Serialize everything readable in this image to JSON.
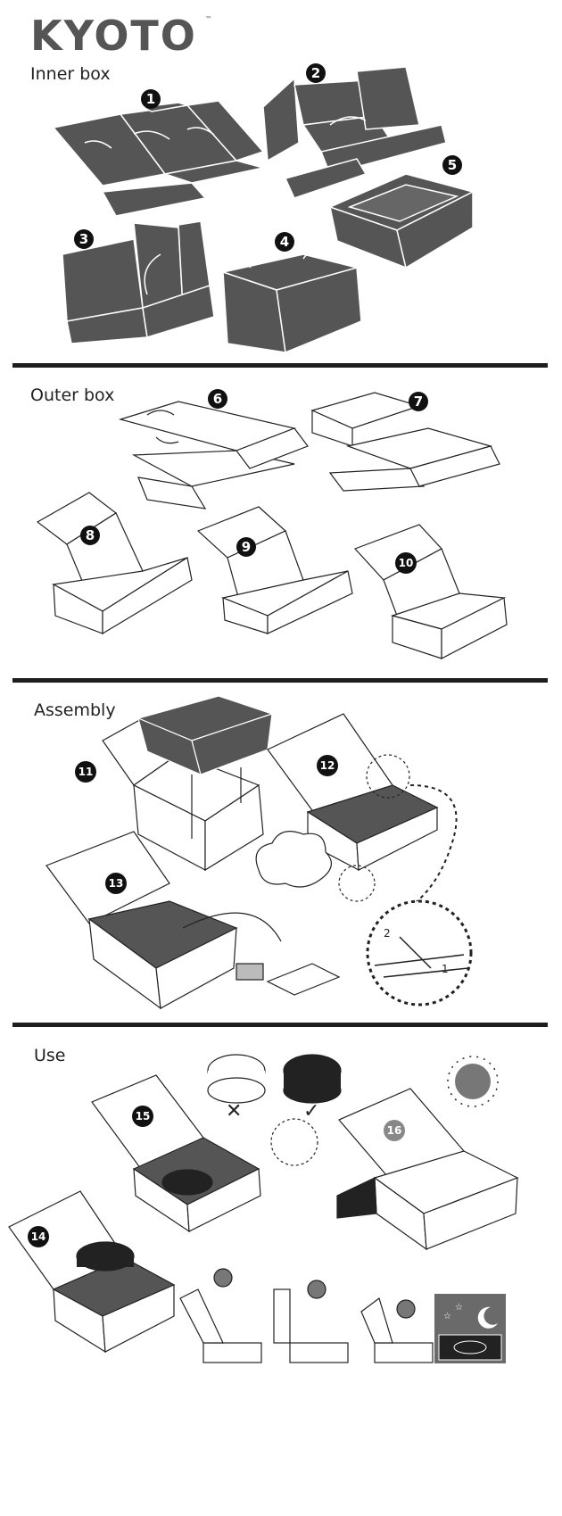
{
  "brand": {
    "name": "KYOTO",
    "trademark": "™"
  },
  "sections": {
    "inner_box": {
      "title": "Inner box"
    },
    "outer_box": {
      "title": "Outer box"
    },
    "assembly": {
      "title": "Assembly"
    },
    "use": {
      "title": "Use"
    }
  },
  "steps": [
    "1",
    "2",
    "3",
    "4",
    "5",
    "6",
    "7",
    "8",
    "9",
    "10",
    "11",
    "12",
    "13",
    "14",
    "15",
    "16"
  ],
  "detail_labels": {
    "fold_2": "2",
    "fold_1": "1"
  },
  "pot_choice": {
    "wrong": "✕",
    "right": "✓"
  },
  "colors": {
    "fill_dark": "#555555",
    "ink": "#1e1e1e",
    "sun": "#777777",
    "night_panel": "#6a6a6a"
  }
}
